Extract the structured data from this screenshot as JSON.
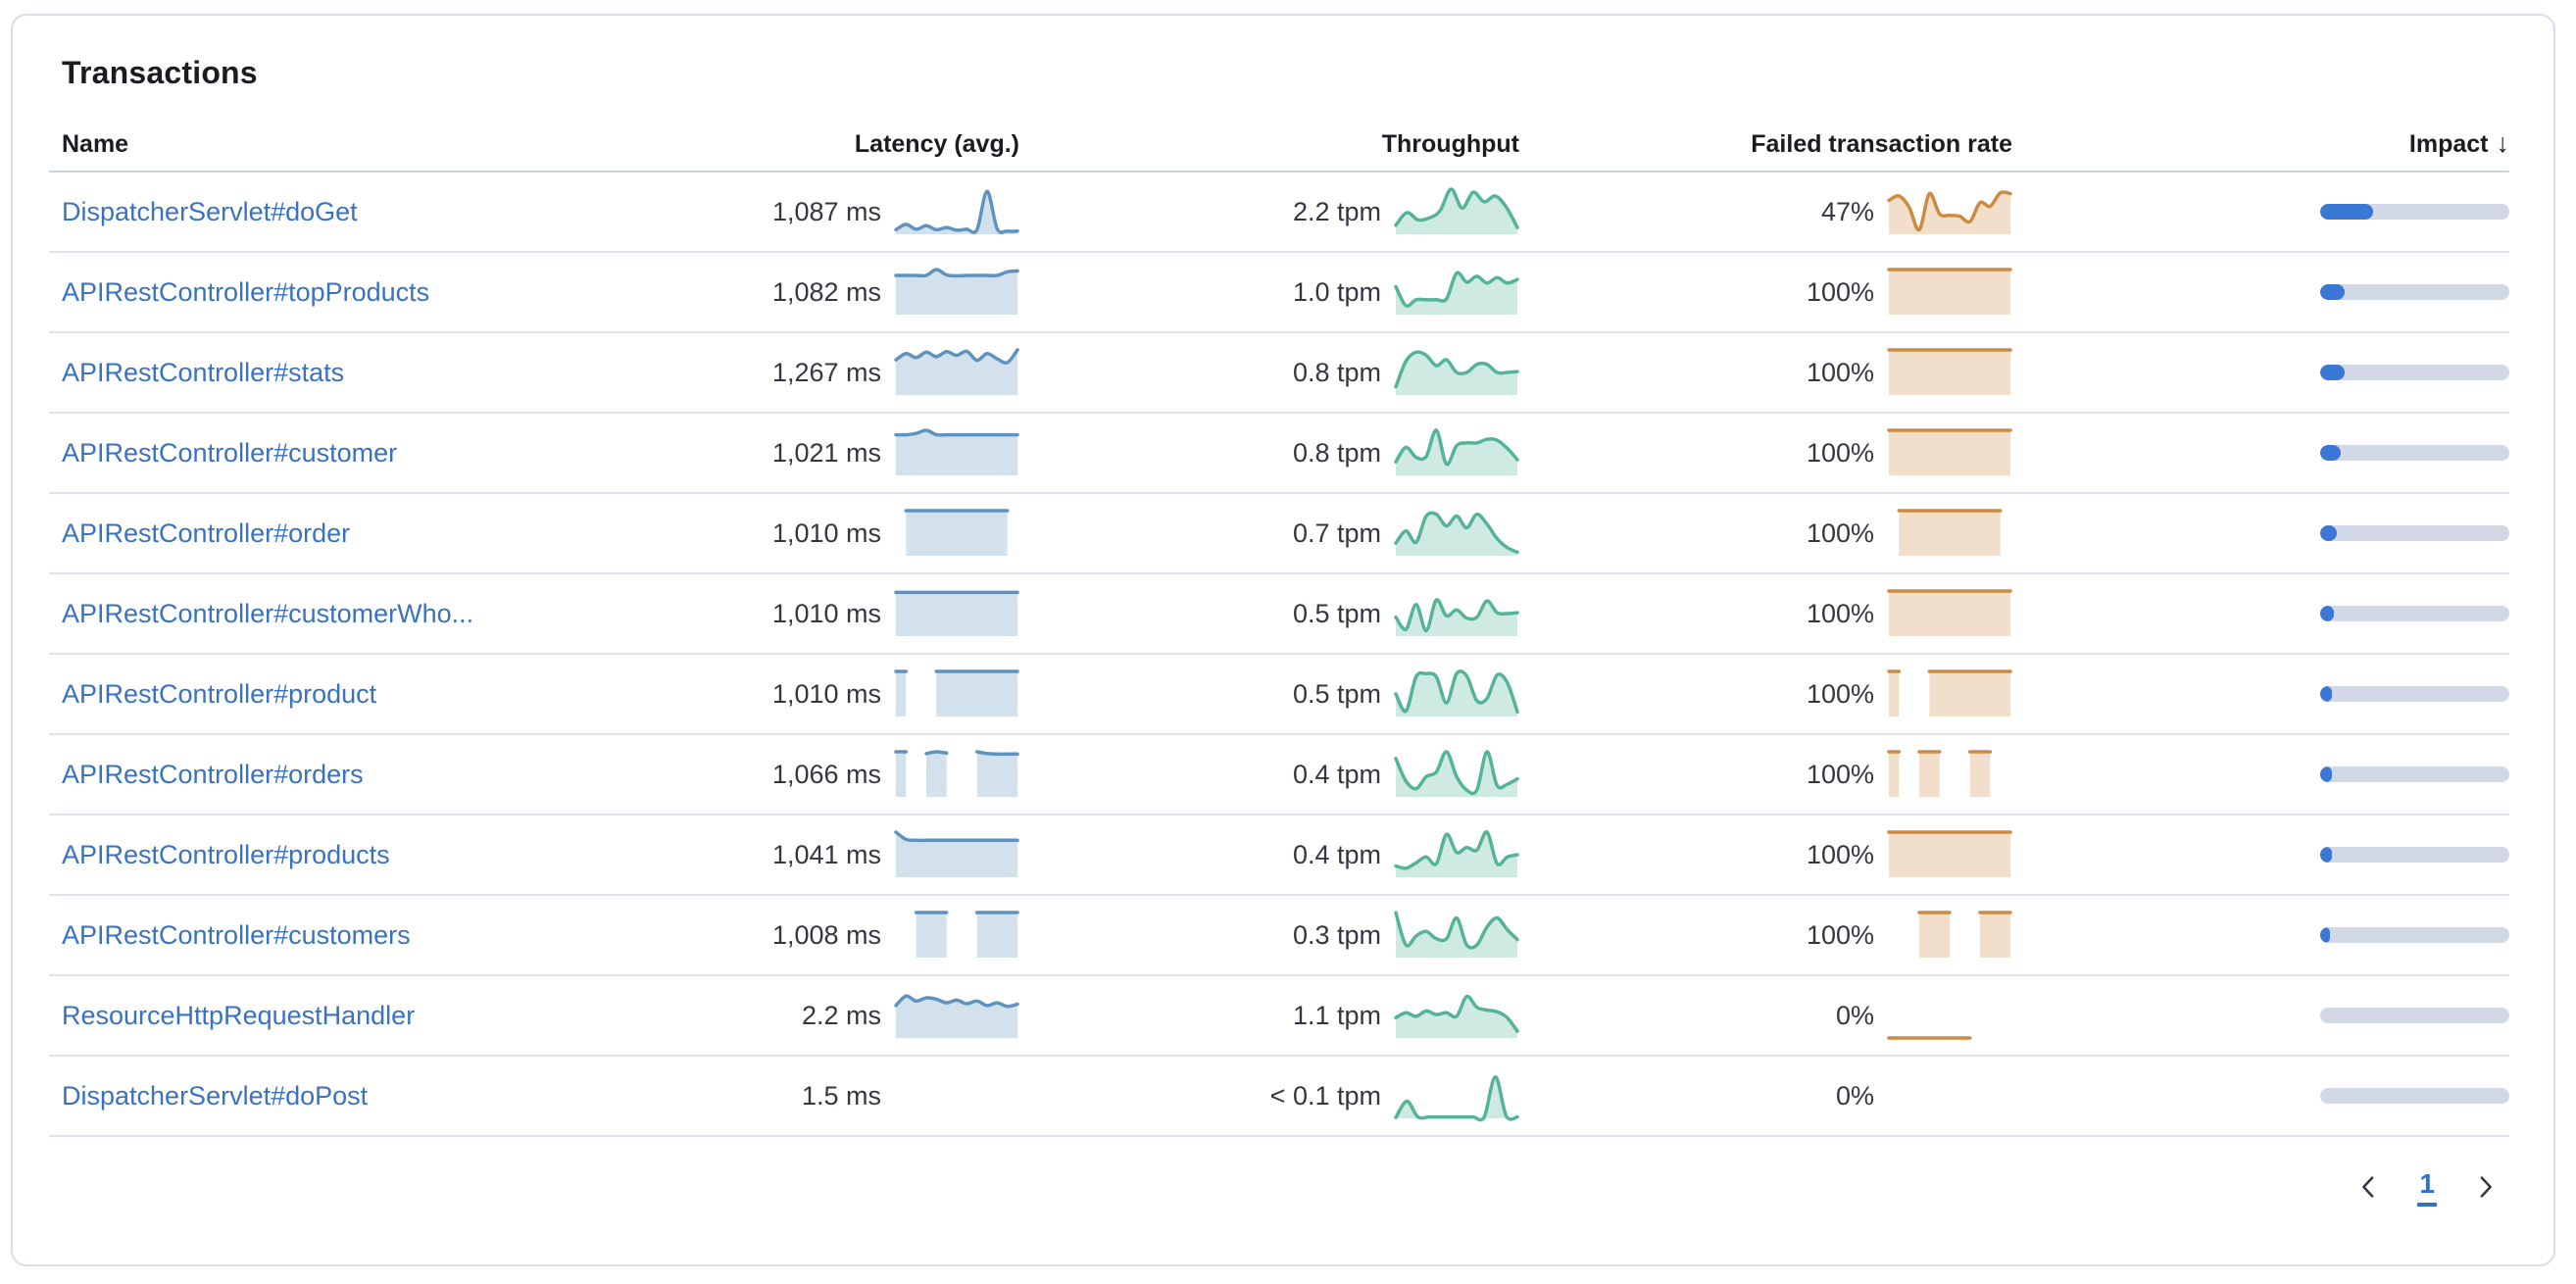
{
  "panel": {
    "title": "Transactions"
  },
  "colors": {
    "latency_line": "#6092c0",
    "throughput_line": "#54b399",
    "failed_line": "#cb8b43",
    "impact_fill": "#3b77d4",
    "impact_track": "#d2d8e5",
    "link_blue": "#3a72c2",
    "text_dark": "#343741"
  },
  "table": {
    "columns": [
      {
        "key": "name",
        "label": "Name"
      },
      {
        "key": "latency",
        "label": "Latency (avg.)"
      },
      {
        "key": "throughput",
        "label": "Throughput"
      },
      {
        "key": "failed",
        "label": "Failed transaction rate"
      },
      {
        "key": "impact",
        "label": "Impact",
        "sort_icon": "↓"
      }
    ],
    "rows": [
      {
        "name": "DispatcherServlet#doGet",
        "latency": {
          "value": "1,087 ms",
          "spark": [
            0.1,
            0.22,
            0.11,
            0.19,
            0.1,
            0.15,
            0.09,
            0.11,
            0.1,
            0.95,
            0.12,
            0.07,
            0.07
          ]
        },
        "throughput": {
          "value": "2.2 tpm",
          "spark": [
            0.2,
            0.48,
            0.32,
            0.36,
            0.52,
            1.0,
            0.58,
            0.93,
            0.72,
            0.85,
            0.6,
            0.15
          ]
        },
        "failed": {
          "value": "47%",
          "spark": [
            0.75,
            0.85,
            0.6,
            0.1,
            0.9,
            0.45,
            0.42,
            0.4,
            0.28,
            0.7,
            0.62,
            0.92,
            0.9
          ]
        },
        "impact": 0.28
      },
      {
        "name": "APIRestController#topProducts",
        "latency": {
          "value": "1,082 ms",
          "spark": [
            0.87,
            0.87,
            0.87,
            0.87,
            1.0,
            0.88,
            0.86,
            0.87,
            0.87,
            0.87,
            0.87,
            0.95,
            0.97
          ]
        },
        "throughput": {
          "value": "1.0 tpm",
          "spark": [
            0.62,
            0.2,
            0.33,
            0.33,
            0.33,
            0.35,
            0.92,
            0.72,
            0.85,
            0.7,
            0.82,
            0.7,
            0.78
          ]
        },
        "failed": {
          "value": "100%",
          "spark": [
            1,
            1,
            1,
            1,
            1,
            1,
            1,
            1,
            1,
            1,
            1,
            1,
            1
          ]
        },
        "impact": 0.13
      },
      {
        "name": "APIRestController#stats",
        "latency": {
          "value": "1,267 ms",
          "spark": [
            0.78,
            0.92,
            0.83,
            0.95,
            0.85,
            0.96,
            0.88,
            0.97,
            0.77,
            0.92,
            0.8,
            0.72,
            1.0
          ]
        },
        "throughput": {
          "value": "0.8 tpm",
          "spark": [
            0.18,
            0.75,
            0.95,
            0.88,
            0.65,
            0.78,
            0.5,
            0.5,
            0.68,
            0.68,
            0.5,
            0.5,
            0.52
          ]
        },
        "failed": {
          "value": "100%",
          "spark": [
            1,
            1,
            1,
            1,
            1,
            1,
            1,
            1,
            1,
            1,
            1,
            1,
            1
          ]
        },
        "impact": 0.13
      },
      {
        "name": "APIRestController#customer",
        "latency": {
          "value": "1,021 ms",
          "spark": [
            0.9,
            0.9,
            0.93,
            1.0,
            0.9,
            0.9,
            0.9,
            0.9,
            0.9,
            0.9,
            0.9,
            0.9,
            0.9
          ]
        },
        "throughput": {
          "value": "0.8 tpm",
          "spark": [
            0.3,
            0.62,
            0.4,
            0.42,
            1.0,
            0.25,
            0.66,
            0.72,
            0.72,
            0.8,
            0.78,
            0.6,
            0.35
          ]
        },
        "failed": {
          "value": "100%",
          "spark": [
            1,
            1,
            1,
            1,
            1,
            1,
            1,
            1,
            1,
            1,
            1,
            1,
            1
          ]
        },
        "impact": 0.11
      },
      {
        "name": "APIRestController#order",
        "latency": {
          "value": "1,010 ms",
          "spark": [
            null,
            1,
            1,
            1,
            1,
            1,
            1,
            1,
            1,
            1,
            1,
            1,
            null
          ]
        },
        "throughput": {
          "value": "0.7 tpm",
          "spark": [
            0.28,
            0.55,
            0.3,
            0.88,
            0.92,
            0.66,
            0.88,
            0.62,
            0.92,
            0.7,
            0.38,
            0.18,
            0.08
          ]
        },
        "failed": {
          "value": "100%",
          "spark": [
            null,
            1,
            1,
            1,
            1,
            1,
            1,
            1,
            1,
            1,
            1,
            1,
            null
          ]
        },
        "impact": 0.09
      },
      {
        "name": "APIRestController#customerWho...",
        "latency": {
          "value": "1,010 ms",
          "spark": [
            0.97,
            0.97,
            0.97,
            0.97,
            0.97,
            0.97,
            0.97,
            0.97,
            0.97,
            0.97,
            0.97,
            0.97,
            0.97
          ]
        },
        "throughput": {
          "value": "0.5 tpm",
          "spark": [
            0.42,
            0.15,
            0.7,
            0.12,
            0.8,
            0.45,
            0.58,
            0.4,
            0.42,
            0.78,
            0.52,
            0.5,
            0.52
          ]
        },
        "failed": {
          "value": "100%",
          "spark": [
            1,
            1,
            1,
            1,
            1,
            1,
            1,
            1,
            1,
            1,
            1,
            1,
            1
          ]
        },
        "impact": 0.07
      },
      {
        "name": "APIRestController#product",
        "latency": {
          "value": "1,010 ms",
          "spark": [
            1,
            1,
            null,
            null,
            1,
            1,
            1,
            1,
            1,
            1,
            1,
            1,
            1
          ]
        },
        "throughput": {
          "value": "0.5 tpm",
          "spark": [
            0.5,
            0.12,
            0.88,
            0.95,
            0.88,
            0.3,
            0.95,
            0.9,
            0.35,
            0.4,
            0.92,
            0.75,
            0.1
          ]
        },
        "failed": {
          "value": "100%",
          "spark": [
            1,
            1,
            null,
            null,
            1,
            1,
            1,
            1,
            1,
            1,
            1,
            1,
            1
          ]
        },
        "impact": 0.06
      },
      {
        "name": "APIRestController#orders",
        "latency": {
          "value": "1,066 ms",
          "spark": [
            1,
            1,
            null,
            0.96,
            1,
            0.97,
            null,
            null,
            1,
            0.96,
            0.95,
            0.95,
            0.95
          ]
        },
        "throughput": {
          "value": "0.4 tpm",
          "spark": [
            0.85,
            0.35,
            0.18,
            0.45,
            0.55,
            1.0,
            0.45,
            0.15,
            0.15,
            1.0,
            0.25,
            0.28,
            0.4
          ]
        },
        "failed": {
          "value": "100%",
          "spark": [
            1,
            1,
            null,
            1,
            1,
            1,
            null,
            null,
            1,
            1,
            1,
            null,
            null
          ]
        },
        "impact": 0.06
      },
      {
        "name": "APIRestController#products",
        "latency": {
          "value": "1,041 ms",
          "spark": [
            1.0,
            0.84,
            0.82,
            0.82,
            0.82,
            0.82,
            0.82,
            0.82,
            0.82,
            0.82,
            0.82,
            0.82,
            0.82
          ]
        },
        "throughput": {
          "value": "0.4 tpm",
          "spark": [
            0.25,
            0.2,
            0.32,
            0.45,
            0.3,
            0.95,
            0.55,
            0.66,
            0.6,
            1.0,
            0.3,
            0.45,
            0.5
          ]
        },
        "failed": {
          "value": "100%",
          "spark": [
            1,
            1,
            1,
            1,
            1,
            1,
            1,
            1,
            1,
            1,
            1,
            1,
            1
          ]
        },
        "impact": 0.06
      },
      {
        "name": "APIRestController#customers",
        "latency": {
          "value": "1,008 ms",
          "spark": [
            null,
            null,
            1,
            1,
            1,
            1,
            null,
            null,
            1,
            1,
            1,
            1,
            1
          ]
        },
        "throughput": {
          "value": "0.3 tpm",
          "spark": [
            1.0,
            0.28,
            0.48,
            0.58,
            0.42,
            0.42,
            0.88,
            0.28,
            0.28,
            0.68,
            0.88,
            0.62,
            0.4
          ]
        },
        "failed": {
          "value": "100%",
          "spark": [
            null,
            null,
            null,
            1,
            1,
            1,
            1,
            null,
            null,
            1,
            1,
            1,
            1
          ]
        },
        "impact": 0.05
      },
      {
        "name": "ResourceHttpRequestHandler",
        "latency": {
          "value": "2.2 ms",
          "spark": [
            0.72,
            0.93,
            0.82,
            0.89,
            0.86,
            0.78,
            0.84,
            0.76,
            0.82,
            0.72,
            0.78,
            0.7,
            0.75
          ]
        },
        "throughput": {
          "value": "1.1 tpm",
          "spark": [
            0.45,
            0.56,
            0.48,
            0.6,
            0.52,
            0.56,
            0.48,
            0.92,
            0.68,
            0.62,
            0.58,
            0.45,
            0.15
          ]
        },
        "failed": {
          "value": "0%",
          "spark": [
            0,
            0,
            0,
            0,
            0,
            0,
            0,
            0,
            0,
            null,
            null,
            null,
            null
          ]
        },
        "impact": 0
      },
      {
        "name": "DispatcherServlet#doPost",
        "latency": {
          "value": "1.5 ms",
          "spark": []
        },
        "throughput": {
          "value": "< 0.1 tpm",
          "spark": [
            0.02,
            0.38,
            0.03,
            0.03,
            0.03,
            0.03,
            0.03,
            0.03,
            0.03,
            0.92,
            0.05,
            0.03
          ]
        },
        "failed": {
          "value": "0%",
          "spark": []
        },
        "impact": 0
      }
    ]
  },
  "pagination": {
    "current_page": "1"
  }
}
